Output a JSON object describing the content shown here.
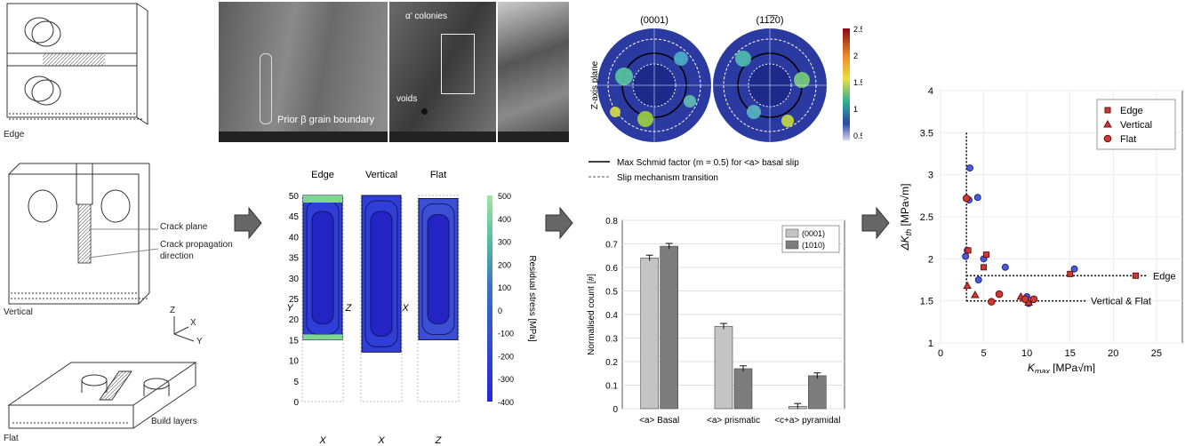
{
  "left": {
    "edge_label": "Edge",
    "vertical_label": "Vertical",
    "flat_label": "Flat",
    "crack_plane": "Crack plane",
    "crack_propagation_1": "Crack propagation",
    "crack_propagation_2": "direction",
    "build_layers": "Build layers",
    "axis_z": "Z",
    "axis_x": "X",
    "axis_y": "Y"
  },
  "sem": {
    "prior_beta": "Prior β grain boundary",
    "alpha_colonies": "α’ colonies",
    "voids": "voids"
  },
  "residual": {
    "titles": [
      "Edge",
      "Vertical",
      "Flat"
    ],
    "ylabels": [
      "Y",
      "Z",
      "X"
    ],
    "xlabels": [
      "X",
      "X",
      "Z"
    ],
    "yticks": [
      "50",
      "45",
      "40",
      "35",
      "30",
      "25",
      "20",
      "15",
      "10",
      "5",
      "0"
    ],
    "colorbar_ticks": [
      "500",
      "400",
      "300",
      "200",
      "100",
      "0",
      "-100",
      "-200",
      "-300",
      "-400"
    ],
    "colorbar_label": "Residual stress [MPa]"
  },
  "pole_figures": {
    "titles": [
      "(0001)",
      "(11̅2̅0)"
    ],
    "side_label": "Z-axis plane",
    "colorbar_ticks": [
      "2.5",
      "2",
      "1.5",
      "1",
      "0.5"
    ],
    "legend_solid": "Max Schmid factor (m = 0.5) for <a> basal slip",
    "legend_dashed": "Slip mechanism transition"
  },
  "chart_data": [
    {
      "type": "bar",
      "categories": [
        "<a> Basal",
        "<a> prismatic",
        "<c+a> pyramidal"
      ],
      "series": [
        {
          "name": "(0001)",
          "values": [
            0.64,
            0.35,
            0.01
          ],
          "color": "#c4c4c4"
        },
        {
          "name": "(1010)",
          "values": [
            0.69,
            0.17,
            0.14
          ],
          "color": "#7c7c7c"
        }
      ],
      "ylabel": "Normalised count [#]",
      "ylim": [
        0,
        0.8
      ],
      "yticks": [
        "0",
        "0.1",
        "0.2",
        "0.3",
        "0.4",
        "0.5",
        "0.6",
        "0.7",
        "0.8"
      ]
    },
    {
      "type": "scatter",
      "xlabel": "K",
      "xlabel_sub": "max",
      "xlabel_unit": " [MPa√m]",
      "ylabel": "ΔK",
      "ylabel_sub": "th",
      "ylabel_unit": " [MPa√m]",
      "xlim": [
        0,
        28
      ],
      "ylim": [
        1,
        4
      ],
      "xticks": [
        "0",
        "5",
        "10",
        "15",
        "20",
        "25"
      ],
      "yticks": [
        "1",
        "1.5",
        "2",
        "2.5",
        "3",
        "3.5",
        "4"
      ],
      "legend_position": "top-right",
      "series": [
        {
          "name": "Edge",
          "marker": "square",
          "color": "#cc3a33",
          "points": [
            [
              3.2,
              2.1
            ],
            [
              5.0,
              1.9
            ],
            [
              5.3,
              2.05
            ],
            [
              15.0,
              1.82
            ],
            [
              22.6,
              1.8
            ]
          ]
        },
        {
          "name": "Vertical",
          "marker": "triangle",
          "color": "#cc3a33",
          "points": [
            [
              3.1,
              1.68
            ],
            [
              4.0,
              1.57
            ],
            [
              9.3,
              1.55
            ],
            [
              10.2,
              1.48
            ]
          ]
        },
        {
          "name": "Flat",
          "marker": "circle",
          "color": "#cc3a33",
          "points": [
            [
              3.0,
              2.72
            ],
            [
              5.9,
              1.49
            ],
            [
              6.8,
              1.58
            ],
            [
              9.8,
              1.52
            ],
            [
              10.8,
              1.52
            ]
          ]
        }
      ],
      "blue_points": [
        [
          3.4,
          3.08
        ],
        [
          3.3,
          2.7
        ],
        [
          4.3,
          2.73
        ],
        [
          3.1,
          2.1
        ],
        [
          2.9,
          2.03
        ],
        [
          5.0,
          2.0
        ],
        [
          4.4,
          1.75
        ],
        [
          7.5,
          1.9
        ],
        [
          15.5,
          1.88
        ],
        [
          10.2,
          1.47
        ],
        [
          10.0,
          1.55
        ]
      ],
      "annotations": [
        "Edge",
        "Vertical & Flat"
      ]
    }
  ]
}
